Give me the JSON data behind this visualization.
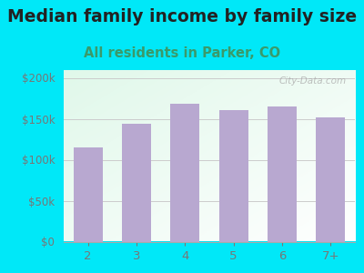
{
  "title": "Median family income by family size",
  "subtitle": "All residents in Parker, CO",
  "categories": [
    "2",
    "3",
    "4",
    "5",
    "6",
    "7+"
  ],
  "values": [
    115000,
    144000,
    168000,
    161000,
    165000,
    152000
  ],
  "bar_color": "#b8a8d0",
  "background_outer": "#00e8f8",
  "title_color": "#222222",
  "subtitle_color": "#3a9a6a",
  "ytick_labels": [
    "$0",
    "$50k",
    "$100k",
    "$150k",
    "$200k"
  ],
  "ytick_values": [
    0,
    50000,
    100000,
    150000,
    200000
  ],
  "ylim": [
    0,
    210000
  ],
  "watermark": "City-Data.com",
  "title_fontsize": 13.5,
  "subtitle_fontsize": 10.5,
  "tick_color": "#777777"
}
